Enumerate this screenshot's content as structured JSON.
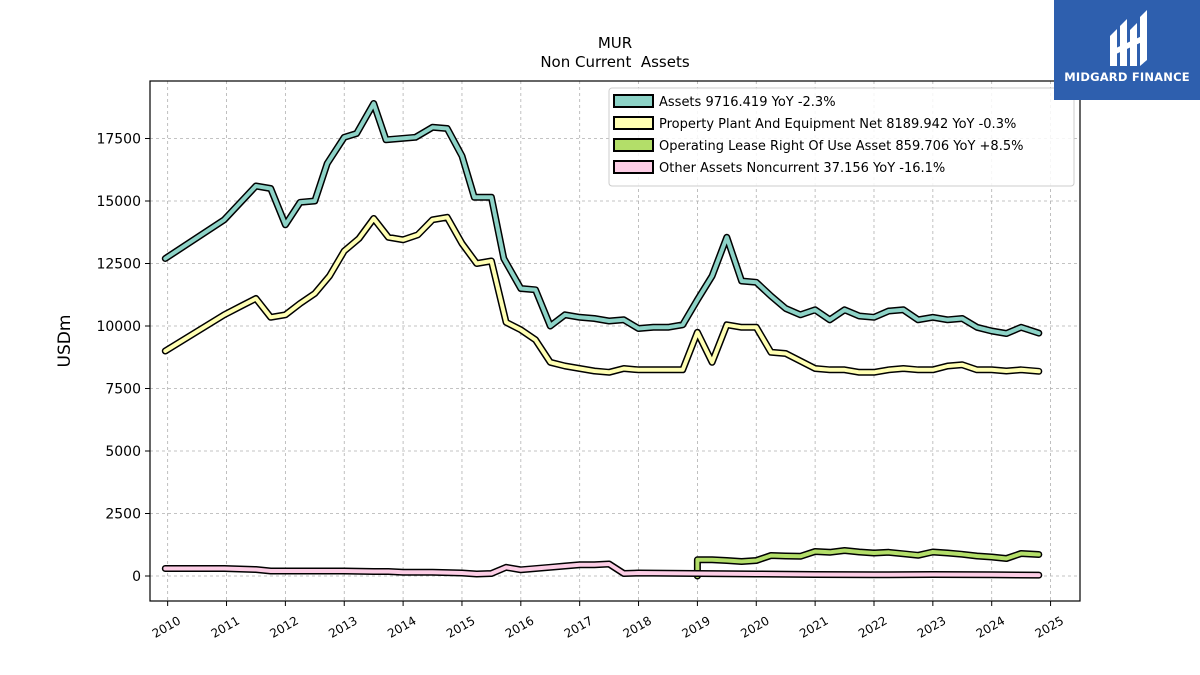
{
  "brand": {
    "name": "MIDGARD FINANCE",
    "bg_color": "#2e5fae"
  },
  "chart_data": {
    "type": "line",
    "title": "MUR",
    "subtitle": "Non Current  Assets",
    "ylabel": "USDm",
    "xlabel": "",
    "xlim": [
      2009.7,
      2025.5
    ],
    "ylim": [
      -1000,
      19800
    ],
    "yticks": [
      0,
      2500,
      5000,
      7500,
      10000,
      12500,
      15000,
      17500
    ],
    "xticks": [
      2010,
      2011,
      2012,
      2013,
      2014,
      2015,
      2016,
      2017,
      2018,
      2019,
      2020,
      2021,
      2022,
      2023,
      2024,
      2025
    ],
    "grid": true,
    "legend_position": "top-right",
    "series": [
      {
        "name": "Assets  9716.419 YoY -2.3%",
        "color": "#8dd3c7",
        "points": [
          [
            2009.96,
            12700
          ],
          [
            2010.96,
            14250
          ],
          [
            2011.5,
            15600
          ],
          [
            2011.75,
            15500
          ],
          [
            2012.0,
            14050
          ],
          [
            2012.25,
            14950
          ],
          [
            2012.5,
            15000
          ],
          [
            2012.71,
            16500
          ],
          [
            2013.0,
            17550
          ],
          [
            2013.21,
            17700
          ],
          [
            2013.5,
            18900
          ],
          [
            2013.71,
            17450
          ],
          [
            2014.21,
            17550
          ],
          [
            2014.5,
            17950
          ],
          [
            2014.75,
            17900
          ],
          [
            2015.0,
            16800
          ],
          [
            2015.21,
            15150
          ],
          [
            2015.5,
            15150
          ],
          [
            2015.71,
            12700
          ],
          [
            2016.0,
            11500
          ],
          [
            2016.25,
            11450
          ],
          [
            2016.5,
            10000
          ],
          [
            2016.75,
            10450
          ],
          [
            2017.0,
            10350
          ],
          [
            2017.25,
            10300
          ],
          [
            2017.5,
            10200
          ],
          [
            2017.75,
            10250
          ],
          [
            2018.0,
            9900
          ],
          [
            2018.25,
            9950
          ],
          [
            2018.5,
            9950
          ],
          [
            2018.75,
            10050
          ],
          [
            2019.0,
            11050
          ],
          [
            2019.25,
            12000
          ],
          [
            2019.5,
            13550
          ],
          [
            2019.75,
            11800
          ],
          [
            2020.0,
            11750
          ],
          [
            2020.25,
            11200
          ],
          [
            2020.5,
            10700
          ],
          [
            2020.75,
            10450
          ],
          [
            2021.0,
            10650
          ],
          [
            2021.25,
            10250
          ],
          [
            2021.5,
            10650
          ],
          [
            2021.75,
            10400
          ],
          [
            2022.0,
            10350
          ],
          [
            2022.25,
            10600
          ],
          [
            2022.5,
            10650
          ],
          [
            2022.75,
            10250
          ],
          [
            2023.0,
            10350
          ],
          [
            2023.25,
            10250
          ],
          [
            2023.5,
            10300
          ],
          [
            2023.75,
            9950
          ],
          [
            2024.0,
            9800
          ],
          [
            2024.25,
            9700
          ],
          [
            2024.5,
            9950
          ],
          [
            2024.8,
            9716
          ]
        ]
      },
      {
        "name": "Property Plant And Equipment Net  8189.942 YoY -0.3%",
        "color": "#ffffb3",
        "points": [
          [
            2009.96,
            9000
          ],
          [
            2010.96,
            10450
          ],
          [
            2011.25,
            10800
          ],
          [
            2011.5,
            11100
          ],
          [
            2011.75,
            10350
          ],
          [
            2012.0,
            10450
          ],
          [
            2012.25,
            10900
          ],
          [
            2012.5,
            11300
          ],
          [
            2012.75,
            12000
          ],
          [
            2013.0,
            13000
          ],
          [
            2013.25,
            13500
          ],
          [
            2013.5,
            14300
          ],
          [
            2013.75,
            13550
          ],
          [
            2014.0,
            13450
          ],
          [
            2014.25,
            13650
          ],
          [
            2014.5,
            14250
          ],
          [
            2014.75,
            14350
          ],
          [
            2015.0,
            13300
          ],
          [
            2015.25,
            12500
          ],
          [
            2015.5,
            12600
          ],
          [
            2015.75,
            10150
          ],
          [
            2016.0,
            9850
          ],
          [
            2016.25,
            9450
          ],
          [
            2016.5,
            8550
          ],
          [
            2016.75,
            8400
          ],
          [
            2017.0,
            8300
          ],
          [
            2017.25,
            8200
          ],
          [
            2017.5,
            8150
          ],
          [
            2017.75,
            8300
          ],
          [
            2018.0,
            8250
          ],
          [
            2018.25,
            8250
          ],
          [
            2018.5,
            8250
          ],
          [
            2018.75,
            8250
          ],
          [
            2019.0,
            9750
          ],
          [
            2019.25,
            8550
          ],
          [
            2019.5,
            10050
          ],
          [
            2019.75,
            9950
          ],
          [
            2020.0,
            9950
          ],
          [
            2020.25,
            8950
          ],
          [
            2020.5,
            8900
          ],
          [
            2020.75,
            8600
          ],
          [
            2021.0,
            8300
          ],
          [
            2021.25,
            8250
          ],
          [
            2021.5,
            8250
          ],
          [
            2021.75,
            8150
          ],
          [
            2022.0,
            8150
          ],
          [
            2022.25,
            8250
          ],
          [
            2022.5,
            8300
          ],
          [
            2022.75,
            8250
          ],
          [
            2023.0,
            8250
          ],
          [
            2023.25,
            8400
          ],
          [
            2023.5,
            8450
          ],
          [
            2023.75,
            8250
          ],
          [
            2024.0,
            8250
          ],
          [
            2024.25,
            8200
          ],
          [
            2024.5,
            8250
          ],
          [
            2024.8,
            8190
          ]
        ]
      },
      {
        "name": "Operating Lease Right Of Use Asset  859.706 YoY +8.5%",
        "color": "#b3de69",
        "points": [
          [
            2019.0,
            0
          ],
          [
            2019.0,
            650
          ],
          [
            2019.25,
            650
          ],
          [
            2019.5,
            620
          ],
          [
            2019.75,
            580
          ],
          [
            2020.0,
            620
          ],
          [
            2020.25,
            820
          ],
          [
            2020.5,
            800
          ],
          [
            2020.75,
            790
          ],
          [
            2021.0,
            980
          ],
          [
            2021.25,
            950
          ],
          [
            2021.5,
            1020
          ],
          [
            2021.75,
            960
          ],
          [
            2022.0,
            920
          ],
          [
            2022.25,
            950
          ],
          [
            2022.5,
            890
          ],
          [
            2022.75,
            830
          ],
          [
            2023.0,
            960
          ],
          [
            2023.25,
            920
          ],
          [
            2023.5,
            870
          ],
          [
            2023.75,
            800
          ],
          [
            2024.0,
            760
          ],
          [
            2024.25,
            700
          ],
          [
            2024.5,
            900
          ],
          [
            2024.8,
            860
          ]
        ]
      },
      {
        "name": "Other Assets Noncurrent  37.156 YoY -16.1%",
        "color": "#fccde5",
        "points": [
          [
            2009.96,
            300
          ],
          [
            2010.96,
            300
          ],
          [
            2011.5,
            260
          ],
          [
            2011.75,
            200
          ],
          [
            2012.5,
            200
          ],
          [
            2013.0,
            200
          ],
          [
            2013.5,
            180
          ],
          [
            2013.75,
            180
          ],
          [
            2014.0,
            150
          ],
          [
            2014.5,
            150
          ],
          [
            2015.0,
            120
          ],
          [
            2015.25,
            80
          ],
          [
            2015.5,
            100
          ],
          [
            2015.75,
            350
          ],
          [
            2016.0,
            250
          ],
          [
            2016.5,
            350
          ],
          [
            2016.75,
            400
          ],
          [
            2017.0,
            450
          ],
          [
            2017.25,
            450
          ],
          [
            2017.5,
            480
          ],
          [
            2017.75,
            100
          ],
          [
            2018.0,
            120
          ],
          [
            2018.5,
            110
          ],
          [
            2019.0,
            100
          ],
          [
            2019.5,
            90
          ],
          [
            2020.0,
            80
          ],
          [
            2021.0,
            60
          ],
          [
            2022.0,
            50
          ],
          [
            2023.0,
            60
          ],
          [
            2024.0,
            50
          ],
          [
            2024.8,
            37
          ]
        ]
      }
    ]
  }
}
